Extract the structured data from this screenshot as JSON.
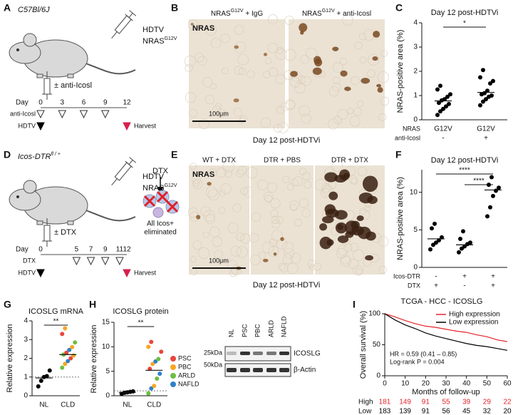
{
  "panels": {
    "labels": [
      "A",
      "B",
      "C",
      "D",
      "E",
      "F",
      "G",
      "H",
      "I"
    ],
    "a": {
      "strain": "C57Bl/6J",
      "hdtv": "HDTV",
      "construct": {
        "base": "NRAS",
        "sup": "G12V"
      },
      "treatment": "± anti-Icosl",
      "timeline": {
        "day_label": "Day",
        "days": [
          0,
          3,
          6,
          9,
          12
        ],
        "rows": [
          {
            "label": "anti-Icosl",
            "marks": [
              "#ffffff",
              "#ffffff",
              "#ffffff",
              "#ffffff",
              null
            ]
          },
          {
            "label": "HDTV",
            "marks": [
              "#000000",
              null,
              null,
              null,
              "#d6204e"
            ]
          }
        ],
        "end_label": "Harvest"
      }
    },
    "b": {
      "images": [
        {
          "base": "NRAS",
          "sup": "G12V",
          "rest": " + IgG"
        },
        {
          "base": "NRAS",
          "sup": "G12V",
          "rest": " + anti-Icosl"
        }
      ],
      "stain": "NRAS",
      "scale": "100μm",
      "caption": "Day 12 post-HDTVi"
    },
    "d": {
      "strain": {
        "base": "Icos-DTR",
        "sup": "fl / +"
      },
      "hdtv": "HDTV",
      "construct": {
        "base": "NRAS",
        "sup": "G12V"
      },
      "treatment": "± DTX",
      "drug": "DTX",
      "outcome": [
        "All Icos+",
        "eliminated"
      ],
      "timeline": {
        "day_label": "Day",
        "days": [
          0,
          5,
          7,
          9,
          11,
          12
        ],
        "rows": [
          {
            "label": "DTX",
            "marks": [
              null,
              "#ffffff",
              "#ffffff",
              "#ffffff",
              "#ffffff",
              null
            ]
          },
          {
            "label": "HDTV",
            "marks": [
              "#000000",
              null,
              null,
              null,
              null,
              "#d6204e"
            ]
          }
        ],
        "end_label": "Harvest"
      }
    },
    "e": {
      "images": [
        "WT + DTX",
        "DTR + PBS",
        "DTR + DTX"
      ],
      "stain": "NRAS",
      "scale": "100μm",
      "caption": "Day 12 post-HDTVi"
    },
    "blot": {
      "lanes": [
        "NL",
        "PSC",
        "PBC",
        "ARLD",
        "NAFLD"
      ],
      "markers": [
        "25kDa",
        "50kDa"
      ],
      "bands": [
        "ICOSLG",
        "β-Actin"
      ]
    }
  },
  "chart_data": [
    {
      "type": "strip",
      "title": "Day 12 post-HDTVi",
      "ylabel": "NRAS-positive area (%)",
      "ylim": [
        0,
        4
      ],
      "yticks": [
        0,
        1,
        2,
        3,
        4
      ],
      "values": [
        [
          0.2,
          0.35,
          0.45,
          0.55,
          0.65,
          0.7,
          0.8,
          0.85,
          0.95,
          1.05,
          1.25,
          1.4
        ],
        [
          0.6,
          0.75,
          0.85,
          0.95,
          1.0,
          1.05,
          1.1,
          1.2,
          1.5,
          1.6,
          1.75,
          2.05
        ]
      ],
      "means": [
        0.78,
        1.13
      ],
      "color": "#000000",
      "x_label_rows": [
        {
          "label": "NRAS",
          "values": [
            "G12V",
            "G12V"
          ]
        },
        {
          "label": "anti-Icosl",
          "values": [
            "-",
            "+"
          ]
        }
      ],
      "annotations": [
        "*"
      ]
    },
    {
      "type": "strip",
      "title": "Day 12 post-HDTVi",
      "ylabel": "NRAS-positive area (%)",
      "ylim": [
        0,
        13
      ],
      "yticks": [
        0,
        5,
        10
      ],
      "values": [
        [
          2.4,
          3.0,
          3.3,
          3.6,
          4.0,
          5.2,
          5.8
        ],
        [
          2.0,
          2.5,
          2.8,
          3.1,
          3.3,
          3.8,
          4.8
        ],
        [
          6.8,
          8.0,
          9.5,
          10.2,
          10.6,
          11.0,
          12.0
        ]
      ],
      "means": [
        3.8,
        3.0,
        10.3
      ],
      "color": "#000000",
      "x_label_rows": [
        {
          "label": "Icos-DTR",
          "values": [
            "-",
            "+",
            "+"
          ]
        },
        {
          "label": "DTX",
          "values": [
            "+",
            "-",
            "+"
          ]
        }
      ],
      "annotations": [
        "****",
        "****"
      ]
    },
    {
      "type": "strip",
      "title": "ICOSLG mRNA",
      "ylabel": "Relative expression",
      "ylim": [
        0,
        4
      ],
      "yticks": [
        0,
        1,
        2,
        3,
        4
      ],
      "categories": [
        "NL",
        "CLD"
      ],
      "values": [
        [
          0.5,
          0.8,
          1.0,
          1.05,
          1.35
        ],
        [
          1.5,
          1.7,
          1.85,
          2.0,
          2.15,
          2.2,
          2.3,
          2.45,
          2.6,
          2.85,
          3.3,
          3.6
        ]
      ],
      "colors": [
        [
          "#000000",
          "#000000",
          "#000000",
          "#000000",
          "#000000"
        ],
        [
          "#6cbf3f",
          "#f5a623",
          "#2f80c8",
          "#e8463a",
          "#f5a623",
          "#6cbf3f",
          "#e8463a",
          "#2f80c8",
          "#f5a623",
          "#6cbf3f",
          "#e8463a",
          "#f5a623"
        ]
      ],
      "means": [
        0.95,
        2.2
      ],
      "reference_line": 1,
      "annotations": [
        "**"
      ]
    },
    {
      "type": "strip",
      "title": "ICOSLG protein",
      "ylabel": "Relative expression",
      "ylim": [
        0,
        15
      ],
      "yticks": [
        0,
        5,
        10,
        15
      ],
      "categories": [
        "NL",
        "CLD"
      ],
      "values": [
        [
          0.4,
          0.6,
          0.7,
          0.8,
          0.9
        ],
        [
          0.5,
          1.5,
          2.0,
          3.5,
          4.5,
          5.5,
          6.5,
          7.0,
          7.5,
          9.0,
          10.0,
          11.0
        ]
      ],
      "colors": [
        [
          "#000000",
          "#000000",
          "#000000",
          "#000000",
          "#000000"
        ],
        [
          "#6cbf3f",
          "#2f80c8",
          "#f5a623",
          "#6cbf3f",
          "#2f80c8",
          "#e8463a",
          "#f5a623",
          "#2f80c8",
          "#6cbf3f",
          "#e8463a",
          "#f5a623",
          "#e8463a"
        ]
      ],
      "means": [
        0.7,
        5.2
      ],
      "reference_line": 1,
      "annotations": [
        "**"
      ],
      "legend": [
        {
          "name": "PSC",
          "color": "#e8463a"
        },
        {
          "name": "PBC",
          "color": "#f5a623"
        },
        {
          "name": "ARLD",
          "color": "#6cbf3f"
        },
        {
          "name": "NAFLD",
          "color": "#2f80c8"
        }
      ]
    },
    {
      "type": "line",
      "title": "TCGA - HCC - ICOSLG",
      "ylabel": "Overall survival (%)",
      "xlabel": "Months of follow-up",
      "xlim": [
        0,
        60
      ],
      "xticks": [
        0,
        10,
        20,
        30,
        40,
        50,
        60
      ],
      "ylim": [
        0,
        100
      ],
      "yticks": [
        0,
        50,
        100
      ],
      "series": [
        {
          "name": "High expression",
          "color": "#e3242b",
          "x": [
            0,
            5,
            10,
            15,
            20,
            25,
            30,
            35,
            40,
            45,
            50,
            55,
            60
          ],
          "values": [
            100,
            95,
            89,
            84,
            80,
            78,
            75,
            72,
            70,
            66,
            63,
            58,
            55
          ]
        },
        {
          "name": "Low expression",
          "color": "#000000",
          "x": [
            0,
            5,
            10,
            15,
            20,
            25,
            30,
            35,
            40,
            45,
            50,
            55,
            60
          ],
          "values": [
            100,
            90,
            82,
            76,
            69,
            64,
            60,
            56,
            52,
            49,
            47,
            44,
            41
          ]
        }
      ],
      "annotations": [
        "HR = 0.59 (0.41 – 0.85)",
        "Log-rank P = 0.004"
      ],
      "risk_table": [
        {
          "label": "High",
          "color": "#e3242b",
          "values": [
            181,
            149,
            91,
            55,
            39,
            29,
            22
          ]
        },
        {
          "label": "Low",
          "color": "#000000",
          "values": [
            183,
            139,
            91,
            56,
            45,
            32,
            20
          ]
        }
      ]
    }
  ]
}
